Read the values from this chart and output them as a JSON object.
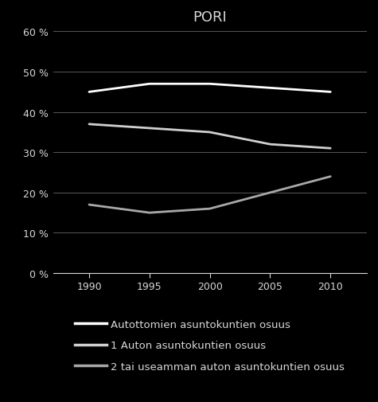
{
  "title": "PORI",
  "years": [
    1990,
    1995,
    2000,
    2005,
    2010
  ],
  "series": [
    {
      "label": "Autottomien asuntokuntien osuus",
      "values": [
        0.45,
        0.47,
        0.47,
        0.46,
        0.45
      ],
      "color": "#ffffff",
      "linewidth": 2.0
    },
    {
      "label": "1 Auton asuntokuntien osuus",
      "values": [
        0.37,
        0.36,
        0.35,
        0.32,
        0.31
      ],
      "color": "#d0d0d0",
      "linewidth": 2.0
    },
    {
      "label": "2 tai useamman auton asuntokuntien osuus",
      "values": [
        0.17,
        0.15,
        0.16,
        0.2,
        0.24
      ],
      "color": "#a8a8a8",
      "linewidth": 2.0
    }
  ],
  "ylim": [
    0,
    0.6
  ],
  "yticks": [
    0.0,
    0.1,
    0.2,
    0.3,
    0.4,
    0.5,
    0.6
  ],
  "ytick_labels": [
    "0 %",
    "10 %",
    "20 %",
    "30 %",
    "40 %",
    "50 %",
    "60 %"
  ],
  "xticks": [
    1990,
    1995,
    2000,
    2005,
    2010
  ],
  "xlim": [
    1987,
    2013
  ],
  "background_color": "#000000",
  "text_color": "#d8d8d8",
  "grid_color": "#666666",
  "title_fontsize": 13,
  "legend_fontsize": 9.5,
  "tick_fontsize": 9
}
